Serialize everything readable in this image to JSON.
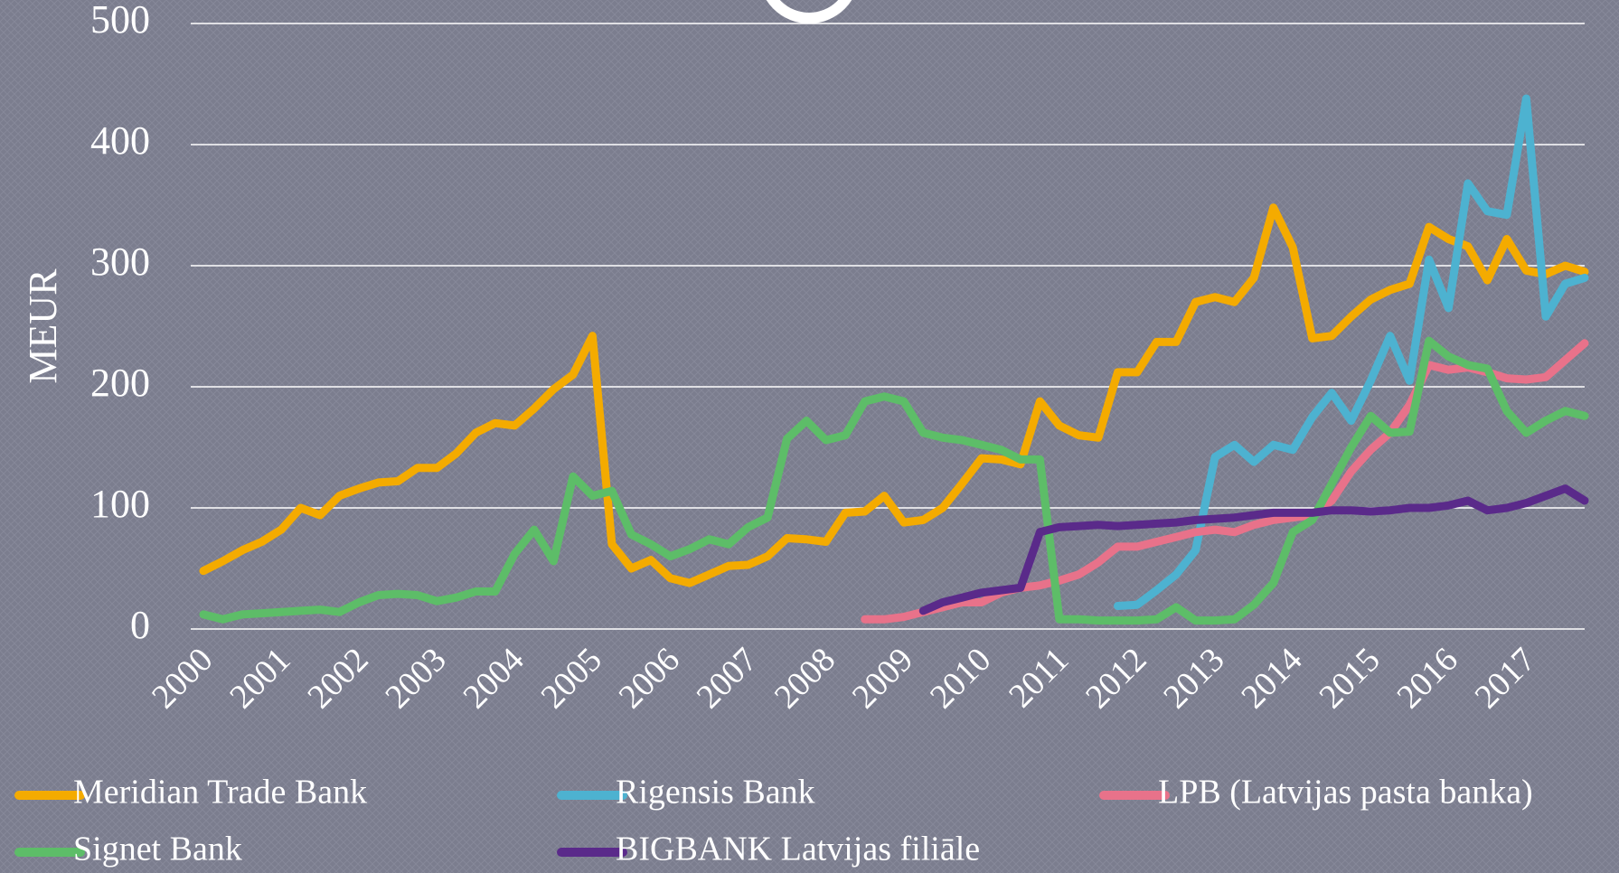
{
  "chart_data": {
    "type": "line",
    "y_label": "MEUR",
    "categories": [
      "2000",
      null,
      null,
      null,
      "2001",
      null,
      null,
      null,
      "2002",
      null,
      null,
      null,
      "2003",
      null,
      null,
      null,
      "2004",
      null,
      null,
      null,
      "2005",
      null,
      null,
      null,
      "2006",
      null,
      null,
      null,
      "2007",
      null,
      null,
      null,
      "2008",
      null,
      null,
      null,
      "2009",
      null,
      null,
      null,
      "2010",
      null,
      null,
      null,
      "2011",
      null,
      null,
      null,
      "2012",
      null,
      null,
      null,
      "2013",
      null,
      null,
      null,
      "2014",
      null,
      null,
      null,
      "2015",
      null,
      null,
      null,
      "2016",
      null,
      null,
      null,
      "2017",
      null,
      null,
      null
    ],
    "ylim": [
      0,
      500
    ],
    "yticks": [
      0,
      100,
      200,
      300,
      400,
      500
    ],
    "grid": true,
    "series": [
      {
        "name": "Meridian Trade Bank",
        "color": "#f4ab00",
        "values": [
          48,
          56,
          65,
          72,
          82,
          100,
          94,
          110,
          116,
          121,
          122,
          133,
          133,
          145,
          162,
          170,
          168,
          182,
          198,
          210,
          242,
          70,
          50,
          57,
          42,
          38,
          45,
          52,
          53,
          60,
          75,
          74,
          72,
          96,
          97,
          110,
          88,
          90,
          100,
          120,
          141,
          140,
          136,
          188,
          168,
          160,
          158,
          212,
          212,
          237,
          237,
          270,
          274,
          270,
          290,
          348,
          315,
          240,
          242,
          258,
          272,
          280,
          285,
          332,
          322,
          316,
          288,
          322,
          296,
          293,
          300,
          295
        ]
      },
      {
        "name": "Rigensis Bank",
        "color": "#4db2d0",
        "values": [
          null,
          null,
          null,
          null,
          null,
          null,
          null,
          null,
          null,
          null,
          null,
          null,
          null,
          null,
          null,
          null,
          null,
          null,
          null,
          null,
          null,
          null,
          null,
          null,
          null,
          null,
          null,
          null,
          null,
          null,
          null,
          null,
          null,
          null,
          null,
          null,
          null,
          null,
          null,
          null,
          null,
          null,
          null,
          null,
          null,
          null,
          null,
          19,
          20,
          32,
          45,
          65,
          142,
          152,
          138,
          152,
          148,
          175,
          195,
          172,
          205,
          242,
          205,
          305,
          265,
          368,
          345,
          342,
          438,
          258,
          285,
          290
        ]
      },
      {
        "name": "LPB (Latvijas pasta banka)",
        "color": "#e8728a",
        "values": [
          null,
          null,
          null,
          null,
          null,
          null,
          null,
          null,
          null,
          null,
          null,
          null,
          null,
          null,
          null,
          null,
          null,
          null,
          null,
          null,
          null,
          null,
          null,
          null,
          null,
          null,
          null,
          null,
          null,
          null,
          null,
          null,
          null,
          null,
          8,
          8,
          10,
          14,
          18,
          22,
          22,
          30,
          34,
          36,
          40,
          45,
          55,
          68,
          68,
          72,
          76,
          80,
          82,
          80,
          86,
          90,
          92,
          94,
          106,
          130,
          148,
          162,
          185,
          218,
          214,
          216,
          212,
          207,
          206,
          208,
          222,
          236
        ]
      },
      {
        "name": "Signet Bank",
        "color": "#5dbd68",
        "values": [
          12,
          8,
          12,
          13,
          14,
          15,
          16,
          14,
          22,
          28,
          29,
          28,
          23,
          26,
          31,
          31,
          62,
          82,
          56,
          126,
          110,
          114,
          78,
          70,
          60,
          66,
          74,
          70,
          84,
          92,
          157,
          172,
          156,
          160,
          188,
          192,
          188,
          162,
          158,
          156,
          152,
          148,
          140,
          140,
          8,
          8,
          7,
          7,
          7,
          8,
          18,
          7,
          7,
          8,
          20,
          38,
          80,
          90,
          120,
          150,
          176,
          162,
          163,
          238,
          225,
          218,
          215,
          180,
          162,
          172,
          180,
          176
        ]
      },
      {
        "name": "BIGBANK Latvijas filiāle",
        "color": "#5a2a8a",
        "values": [
          null,
          null,
          null,
          null,
          null,
          null,
          null,
          null,
          null,
          null,
          null,
          null,
          null,
          null,
          null,
          null,
          null,
          null,
          null,
          null,
          null,
          null,
          null,
          null,
          null,
          null,
          null,
          null,
          null,
          null,
          null,
          null,
          null,
          null,
          null,
          null,
          null,
          15,
          22,
          26,
          30,
          32,
          34,
          80,
          84,
          85,
          86,
          85,
          86,
          87,
          88,
          90,
          91,
          92,
          94,
          96,
          96,
          96,
          98,
          98,
          97,
          98,
          100,
          100,
          102,
          106,
          98,
          100,
          104,
          110,
          116,
          106
        ]
      }
    ]
  }
}
